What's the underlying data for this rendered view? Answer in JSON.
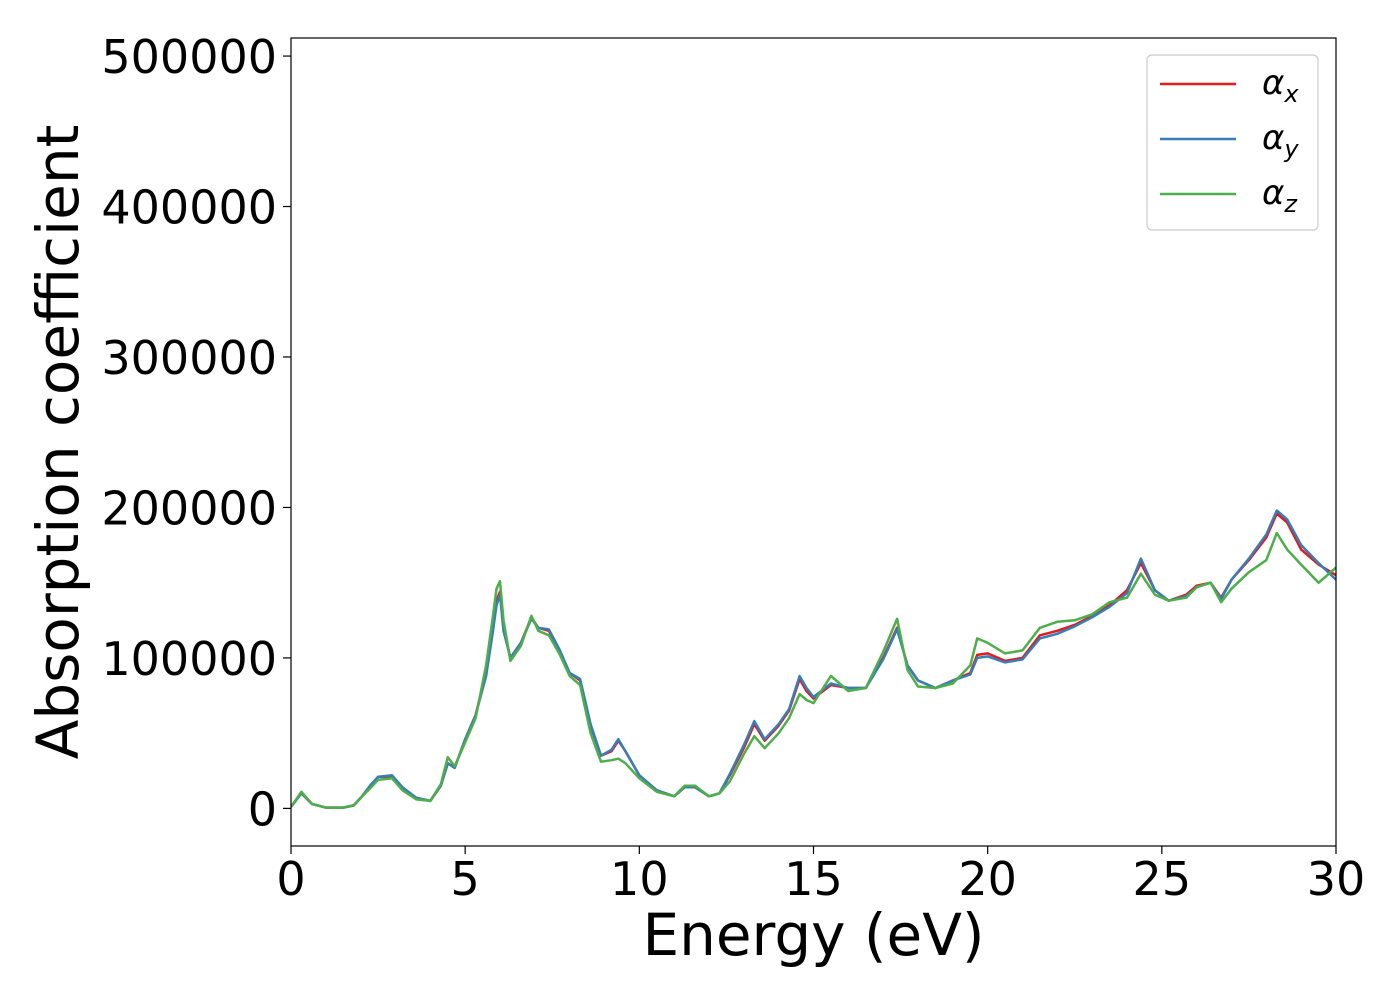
{
  "chart_data": {
    "type": "line",
    "xlabel": "Energy (eV)",
    "ylabel": "Absorption coefficient",
    "xlim": [
      0,
      30
    ],
    "ylim": [
      -25000,
      512000
    ],
    "x_ticks": [
      0,
      5,
      10,
      15,
      20,
      25,
      30
    ],
    "y_ticks": [
      0,
      100000,
      200000,
      300000,
      400000,
      500000
    ],
    "x_tick_labels": [
      "0",
      "5",
      "10",
      "15",
      "20",
      "25",
      "30"
    ],
    "y_tick_labels": [
      "0",
      "100000",
      "200000",
      "300000",
      "400000",
      "500000"
    ],
    "grid": false,
    "legend_position": "top-right",
    "x": [
      0,
      0.3,
      0.6,
      1,
      1.5,
      1.8,
      2,
      2.3,
      2.5,
      2.9,
      3.2,
      3.6,
      4,
      4.3,
      4.5,
      4.7,
      5,
      5.3,
      5.6,
      5.8,
      5.9,
      6,
      6.1,
      6.3,
      6.6,
      6.9,
      7.1,
      7.4,
      7.7,
      8,
      8.3,
      8.6,
      8.9,
      9.2,
      9.4,
      9.6,
      10,
      10.5,
      11,
      11.3,
      11.6,
      12,
      12.3,
      12.6,
      13,
      13.3,
      13.6,
      14,
      14.3,
      14.6,
      14.8,
      15,
      15.5,
      16,
      16.5,
      17,
      17.4,
      17.7,
      18,
      18.5,
      19,
      19.5,
      19.7,
      20,
      20.5,
      21,
      21.5,
      22,
      22.5,
      23,
      23.5,
      24,
      24.4,
      24.8,
      25.2,
      25.7,
      26,
      26.4,
      26.7,
      27,
      27.5,
      28,
      28.3,
      28.6,
      29,
      29.5,
      30
    ],
    "series": [
      {
        "name": "α",
        "subscript": "x",
        "color": "#e41a1c",
        "values": [
          1000,
          10000,
          3000,
          500,
          500,
          2000,
          7000,
          15000,
          21000,
          21000,
          13000,
          7000,
          5000,
          15000,
          30000,
          27000,
          46000,
          62000,
          90000,
          120000,
          138000,
          144000,
          120000,
          100000,
          110000,
          127000,
          120000,
          118000,
          105000,
          90000,
          85000,
          55000,
          35000,
          38000,
          45000,
          38000,
          22000,
          12000,
          8000,
          14000,
          14000,
          8000,
          10000,
          22000,
          40000,
          56000,
          45000,
          55000,
          65000,
          86000,
          78000,
          73000,
          82000,
          80000,
          80000,
          100000,
          120000,
          95000,
          85000,
          80000,
          85000,
          90000,
          102000,
          103000,
          98000,
          100000,
          115000,
          118000,
          122000,
          128000,
          135000,
          145000,
          163000,
          145000,
          138000,
          142000,
          148000,
          150000,
          140000,
          152000,
          165000,
          180000,
          196000,
          190000,
          172000,
          162000,
          155000
        ]
      },
      {
        "name": "α",
        "subscript": "y",
        "color": "#377eb8",
        "values": [
          1000,
          10000,
          3000,
          500,
          500,
          2000,
          7000,
          16000,
          21000,
          22000,
          14000,
          7000,
          5000,
          15000,
          30000,
          27000,
          46000,
          62000,
          88000,
          118000,
          135000,
          142000,
          118000,
          100000,
          110000,
          126000,
          120000,
          119000,
          106000,
          90000,
          86000,
          56000,
          35000,
          39000,
          46000,
          38000,
          22000,
          12000,
          8000,
          14000,
          14000,
          8000,
          10000,
          23000,
          42000,
          58000,
          46000,
          56000,
          66000,
          88000,
          80000,
          74000,
          83000,
          80000,
          80000,
          99000,
          119000,
          95000,
          85000,
          80000,
          85000,
          89000,
          100000,
          101000,
          97000,
          99000,
          113000,
          116000,
          121000,
          127000,
          134000,
          143000,
          166000,
          145000,
          138000,
          141000,
          147000,
          150000,
          139000,
          152000,
          166000,
          182000,
          198000,
          192000,
          175000,
          163000,
          152000
        ]
      },
      {
        "name": "α",
        "subscript": "z",
        "color": "#4daf4a",
        "values": [
          1000,
          11000,
          3000,
          500,
          500,
          2000,
          7000,
          14000,
          19000,
          20000,
          12000,
          6000,
          5000,
          16000,
          34000,
          28000,
          44000,
          60000,
          95000,
          128000,
          146000,
          151000,
          125000,
          98000,
          108000,
          128000,
          118000,
          115000,
          103000,
          88000,
          82000,
          50000,
          31000,
          32000,
          33000,
          30000,
          20000,
          11000,
          8000,
          15000,
          15000,
          8000,
          10000,
          18000,
          36000,
          48000,
          40000,
          50000,
          60000,
          76000,
          72000,
          70000,
          88000,
          78000,
          80000,
          104000,
          126000,
          92000,
          81000,
          80000,
          83000,
          95000,
          113000,
          110000,
          103000,
          105000,
          120000,
          124000,
          125000,
          129000,
          137000,
          140000,
          156000,
          142000,
          138000,
          140000,
          147000,
          150000,
          137000,
          146000,
          157000,
          165000,
          183000,
          172000,
          162000,
          150000,
          160000
        ]
      }
    ]
  }
}
